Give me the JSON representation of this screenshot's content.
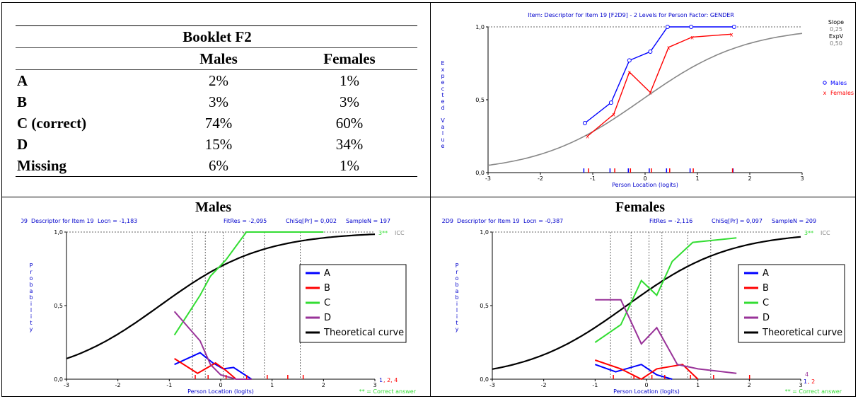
{
  "table": {
    "title": "Booklet F2",
    "headers": [
      "",
      "Males",
      "Females"
    ],
    "rows": [
      {
        "label": "A",
        "males": "2%",
        "females": "1%"
      },
      {
        "label": "B",
        "males": "3%",
        "females": "3%"
      },
      {
        "label": "C (correct)",
        "males": "74%",
        "females": "60%"
      },
      {
        "label": "D",
        "males": "15%",
        "females": "34%"
      },
      {
        "label": "Missing",
        "males": "6%",
        "females": "1%"
      }
    ]
  },
  "chart_data": [
    {
      "type": "line",
      "title": "Item: Descriptor for Item 19 [F2D9] - 2 Levels for Person Factor: GENDER",
      "xlabel": "Person Location (logits)",
      "ylabel": "Expected Value",
      "xlim": [
        -3,
        3
      ],
      "ylim": [
        0,
        1
      ],
      "xticks": [
        "-3",
        "-2",
        "-1",
        "0",
        "1",
        "2",
        "3"
      ],
      "yticks": [
        "0,0",
        "0,5",
        "1,0"
      ],
      "slope_label": "Slope",
      "slope_value": "0,25",
      "expv_label": "ExpV",
      "expv_value": "0,50",
      "theoretical": {
        "loc": -0.06,
        "k": 1.0
      },
      "series": [
        {
          "name": "Males",
          "marker": "o",
          "color": "#0000ff",
          "x": [
            -1.15,
            -0.65,
            -0.3,
            0.1,
            0.43,
            0.88,
            1.7
          ],
          "y": [
            0.34,
            0.48,
            0.77,
            0.83,
            1.0,
            1.0,
            1.0
          ]
        },
        {
          "name": "Females",
          "marker": "x",
          "color": "#ff0000",
          "x": [
            -1.1,
            -0.6,
            -0.3,
            0.1,
            0.45,
            0.9,
            1.65
          ],
          "y": [
            0.25,
            0.4,
            0.69,
            0.55,
            0.86,
            0.93,
            0.95
          ]
        }
      ]
    },
    {
      "type": "line",
      "panel_title": "Males",
      "header": {
        "code": "F2D9",
        "desc": "Descriptor for Item 19",
        "locn": "Locn = -1,183",
        "fitres": "FitRes = -2,095",
        "chisq": "ChiSq[Pr] = 0,002",
        "samplen": "SampleN = 197"
      },
      "xlabel": "Person Location (logits)",
      "ylabel": "Probability",
      "xlim": [
        -3,
        3
      ],
      "ylim": [
        0,
        1
      ],
      "xticks": [
        "-3",
        "-2",
        "-1",
        "0",
        "1",
        "2",
        "3"
      ],
      "yticks": [
        "0,0",
        "0,5",
        "1,0"
      ],
      "icc_label": "ICC",
      "correct_tag": "3**",
      "footnote": "** = Correct answer",
      "tail_labels": [
        "1",
        ", 2, 4"
      ],
      "theoretical": {
        "loc": -1.183,
        "k": 1.0
      },
      "class_bounds": [
        -0.55,
        -0.3,
        0.05,
        0.45,
        0.85,
        1.55
      ],
      "series": [
        {
          "name": "A",
          "color": "#0000ff",
          "x": [
            -0.9,
            -0.4,
            -0.15,
            0.05,
            0.25,
            0.6
          ],
          "y": [
            0.1,
            0.18,
            0.11,
            0.07,
            0.08,
            0.0
          ]
        },
        {
          "name": "B",
          "color": "#ff0000",
          "x": [
            -0.9,
            -0.45,
            -0.1,
            0.1,
            0.3,
            0.6
          ],
          "y": [
            0.14,
            0.04,
            0.11,
            0.06,
            0.0,
            0.0
          ]
        },
        {
          "name": "C",
          "color": "#33dd33",
          "x": [
            -0.9,
            -0.4,
            -0.2,
            0.1,
            0.5,
            0.9,
            2.0
          ],
          "y": [
            0.3,
            0.57,
            0.7,
            0.81,
            1.0,
            1.0,
            1.0
          ]
        },
        {
          "name": "D",
          "color": "#993399",
          "x": [
            -0.9,
            -0.4,
            -0.2,
            0.0,
            0.3,
            0.6
          ],
          "y": [
            0.46,
            0.26,
            0.1,
            0.03,
            0.0,
            0.0
          ]
        },
        {
          "name": "Theoretical curve",
          "color": "#000000",
          "theoretical": true
        }
      ]
    },
    {
      "type": "line",
      "panel_title": "Females",
      "header": {
        "code": "F2D9",
        "desc": "Descriptor for Item 19",
        "locn": "Locn = -0,387",
        "fitres": "FitRes = -2,116",
        "chisq": "ChiSq[Pr] = 0,097",
        "samplen": "SampleN = 209"
      },
      "xlabel": "Person Location (logits)",
      "ylabel": "Probability",
      "xlim": [
        -3,
        3
      ],
      "ylim": [
        0,
        1
      ],
      "xticks": [
        "-3",
        "-2",
        "-1",
        "0",
        "1",
        "2",
        "3"
      ],
      "yticks": [
        "0,0",
        "0,5",
        "1,0"
      ],
      "icc_label": "ICC",
      "correct_tag": "3**",
      "footnote": "** = Correct answer",
      "tail_labels": [
        "4",
        "1",
        ", 2"
      ],
      "theoretical": {
        "loc": -0.387,
        "k": 1.0
      },
      "class_bounds": [
        -0.7,
        -0.3,
        0.05,
        0.3,
        0.8,
        1.25
      ],
      "series": [
        {
          "name": "A",
          "color": "#0000ff",
          "x": [
            -1.0,
            -0.6,
            -0.1,
            0.2,
            0.5
          ],
          "y": [
            0.1,
            0.05,
            0.1,
            0.03,
            0.0
          ]
        },
        {
          "name": "B",
          "color": "#ff0000",
          "x": [
            -1.0,
            -0.5,
            -0.1,
            0.2,
            0.7,
            1.0
          ],
          "y": [
            0.13,
            0.07,
            0.0,
            0.07,
            0.1,
            0.0
          ]
        },
        {
          "name": "C",
          "color": "#33dd33",
          "x": [
            -1.0,
            -0.5,
            -0.1,
            0.2,
            0.5,
            0.9,
            1.75
          ],
          "y": [
            0.25,
            0.37,
            0.67,
            0.57,
            0.8,
            0.93,
            0.96
          ]
        },
        {
          "name": "D",
          "color": "#993399",
          "x": [
            -1.0,
            -0.5,
            -0.1,
            0.2,
            0.6,
            1.0,
            1.75
          ],
          "y": [
            0.54,
            0.54,
            0.24,
            0.35,
            0.1,
            0.07,
            0.04
          ]
        },
        {
          "name": "Theoretical curve",
          "color": "#000000",
          "theoretical": true
        }
      ]
    }
  ]
}
